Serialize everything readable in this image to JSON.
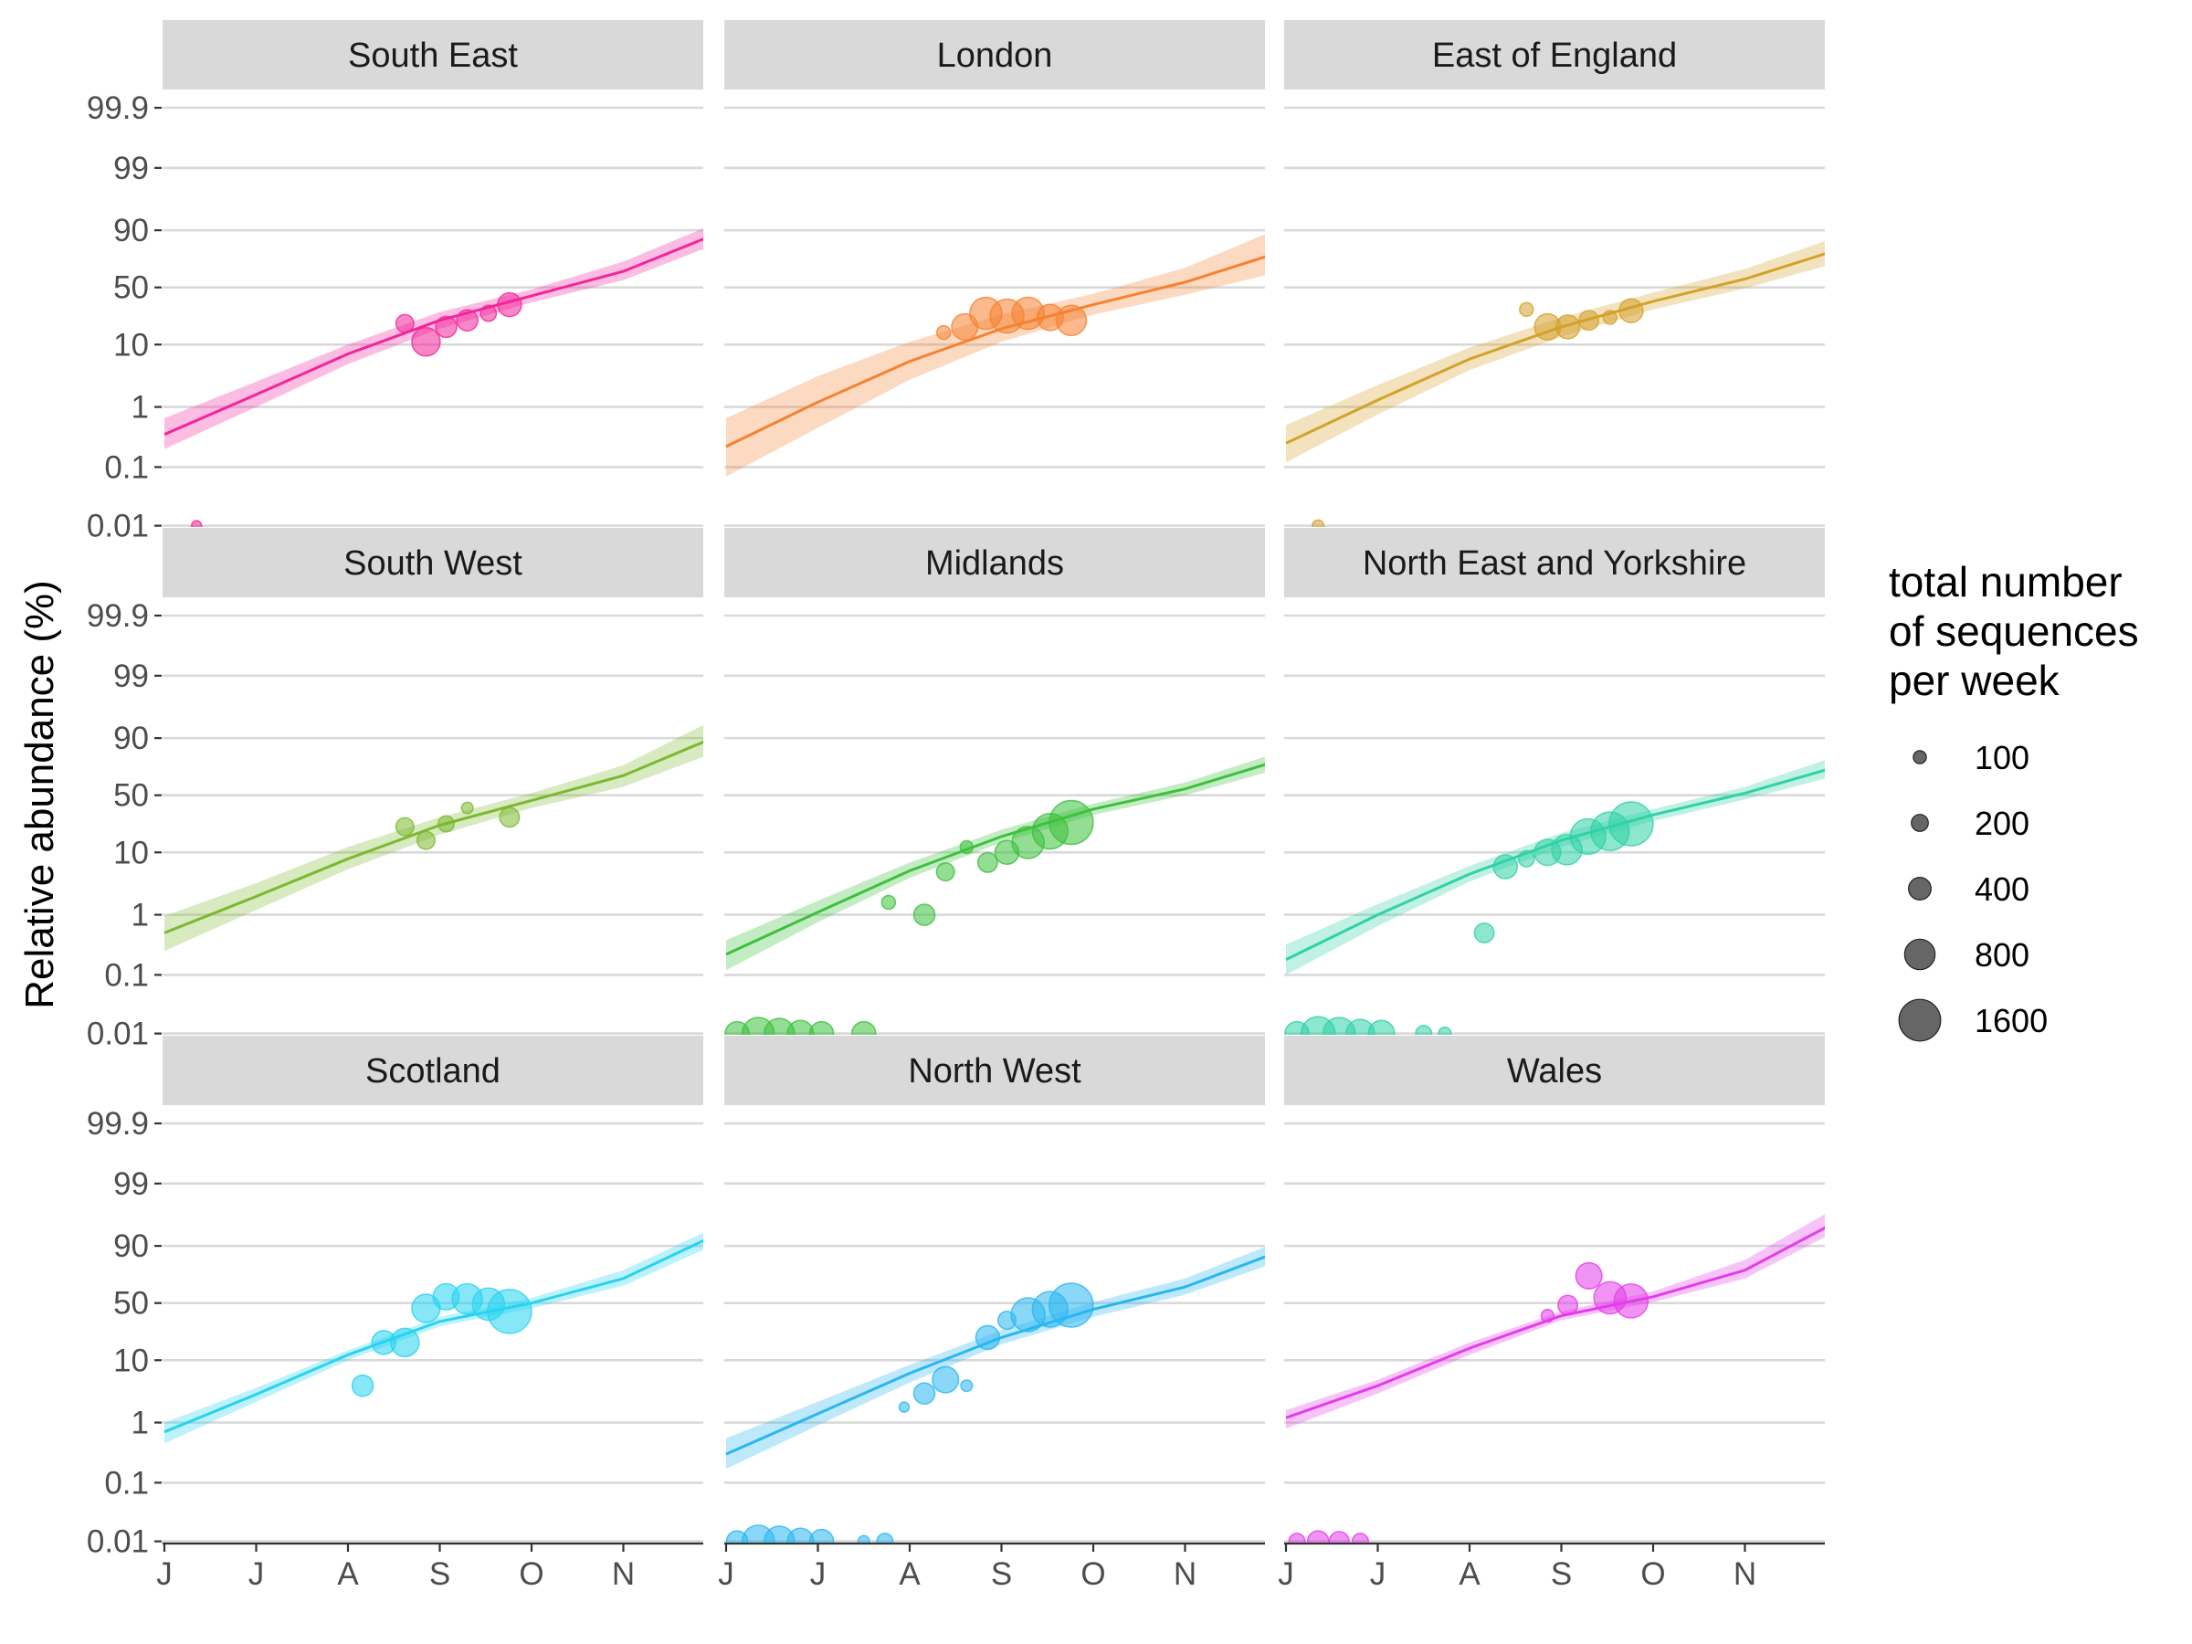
{
  "chart_data": {
    "type": "scatter",
    "ylabel": "Relative abundance (%)",
    "y_scale": "logit",
    "y_ticks": [
      0.01,
      0.1,
      1,
      10,
      50,
      90,
      99,
      99.9
    ],
    "y_tick_labels": [
      "0.01",
      "0.1",
      "1",
      "10",
      "50",
      "90",
      "99",
      "99.9"
    ],
    "x_ticks": [
      0,
      1,
      2,
      3,
      4,
      5
    ],
    "x_tick_labels": [
      "J",
      "J",
      "A",
      "S",
      "O",
      "N"
    ],
    "x_range": [
      0,
      5.9
    ],
    "legend": {
      "title_lines": [
        "total number",
        "of sequences",
        "per week"
      ],
      "placement": "right",
      "sizes": [
        100,
        200,
        400,
        800,
        1600
      ],
      "labels": [
        "100",
        "200",
        "400",
        "800",
        "1600"
      ]
    },
    "panels": [
      {
        "name": "South East",
        "color": "#F2259B",
        "fit_x": [
          0,
          1,
          2,
          3,
          4,
          5,
          5.9
        ],
        "fit_y": [
          0.35,
          1.6,
          7.2,
          22,
          42,
          65,
          87
        ],
        "band_lo": [
          0.2,
          1.0,
          5.0,
          17,
          36,
          57,
          82
        ],
        "band_hi": [
          0.65,
          2.6,
          10,
          28,
          48,
          73,
          91
        ],
        "points": [
          {
            "x": 2.62,
            "y": 20,
            "n": 200
          },
          {
            "x": 2.85,
            "y": 11,
            "n": 600
          },
          {
            "x": 3.07,
            "y": 18,
            "n": 300
          },
          {
            "x": 3.3,
            "y": 22,
            "n": 300
          },
          {
            "x": 3.53,
            "y": 27,
            "n": 150
          },
          {
            "x": 3.76,
            "y": 34,
            "n": 400
          },
          {
            "x": 0.35,
            "y": 0.01,
            "n": 40
          }
        ]
      },
      {
        "name": "London",
        "color": "#F58231",
        "fit_x": [
          0,
          1,
          2,
          3,
          4,
          5,
          5.9
        ],
        "fit_y": [
          0.22,
          1.2,
          5.5,
          17,
          34,
          55,
          77
        ],
        "band_lo": [
          0.07,
          0.45,
          2.8,
          11,
          26,
          43,
          62
        ],
        "band_hi": [
          0.65,
          3.2,
          11,
          26,
          44,
          68,
          89
        ],
        "points": [
          {
            "x": 2.37,
            "y": 15,
            "n": 100
          },
          {
            "x": 2.6,
            "y": 18,
            "n": 500
          },
          {
            "x": 2.83,
            "y": 27,
            "n": 800
          },
          {
            "x": 3.06,
            "y": 25,
            "n": 900
          },
          {
            "x": 3.29,
            "y": 27,
            "n": 800
          },
          {
            "x": 3.53,
            "y": 24,
            "n": 500
          },
          {
            "x": 3.76,
            "y": 22,
            "n": 700
          }
        ]
      },
      {
        "name": "East of England",
        "color": "#D4A129",
        "fit_x": [
          0,
          1,
          2,
          3,
          4,
          5,
          5.9
        ],
        "fit_y": [
          0.25,
          1.3,
          6.0,
          18,
          37,
          58,
          79
        ],
        "band_lo": [
          0.12,
          0.75,
          4.0,
          13,
          30,
          49,
          70
        ],
        "band_hi": [
          0.5,
          2.3,
          9,
          24,
          45,
          67,
          86
        ],
        "points": [
          {
            "x": 2.62,
            "y": 30,
            "n": 100
          },
          {
            "x": 2.85,
            "y": 18,
            "n": 500
          },
          {
            "x": 3.07,
            "y": 18,
            "n": 400
          },
          {
            "x": 3.3,
            "y": 22,
            "n": 250
          },
          {
            "x": 3.53,
            "y": 24,
            "n": 100
          },
          {
            "x": 3.76,
            "y": 29,
            "n": 400
          },
          {
            "x": 0.35,
            "y": 0.01,
            "n": 60
          }
        ]
      },
      {
        "name": "South West",
        "color": "#7CB82F",
        "fit_x": [
          0,
          1,
          2,
          3,
          4,
          5,
          5.9
        ],
        "fit_y": [
          0.5,
          2.0,
          8.0,
          24,
          45,
          68,
          89
        ],
        "band_lo": [
          0.25,
          1.2,
          5.5,
          18,
          38,
          58,
          82
        ],
        "band_hi": [
          0.95,
          3.3,
          12,
          30,
          52,
          76,
          94
        ],
        "points": [
          {
            "x": 2.62,
            "y": 23,
            "n": 200
          },
          {
            "x": 2.85,
            "y": 15,
            "n": 200
          },
          {
            "x": 3.07,
            "y": 25,
            "n": 150
          },
          {
            "x": 3.3,
            "y": 38,
            "n": 60
          },
          {
            "x": 3.76,
            "y": 30,
            "n": 250
          }
        ]
      },
      {
        "name": "Midlands",
        "color": "#3CC13C",
        "fit_x": [
          0,
          1,
          2,
          3,
          4,
          5,
          5.9
        ],
        "fit_y": [
          0.22,
          1.1,
          5.2,
          17,
          37,
          56,
          77
        ],
        "band_lo": [
          0.12,
          0.75,
          4.0,
          14,
          32,
          50,
          71
        ],
        "band_hi": [
          0.38,
          1.7,
          7.0,
          21,
          42,
          62,
          82
        ],
        "points": [
          {
            "x": 1.77,
            "y": 1.6,
            "n": 100
          },
          {
            "x": 2.16,
            "y": 1.0,
            "n": 300
          },
          {
            "x": 2.39,
            "y": 5,
            "n": 200
          },
          {
            "x": 2.62,
            "y": 12,
            "n": 80
          },
          {
            "x": 2.85,
            "y": 7,
            "n": 250
          },
          {
            "x": 3.06,
            "y": 10,
            "n": 400
          },
          {
            "x": 3.29,
            "y": 14,
            "n": 800
          },
          {
            "x": 3.53,
            "y": 20,
            "n": 1000
          },
          {
            "x": 3.76,
            "y": 26,
            "n": 1600
          },
          {
            "x": 0.12,
            "y": 0.01,
            "n": 400
          },
          {
            "x": 0.35,
            "y": 0.01,
            "n": 800
          },
          {
            "x": 0.58,
            "y": 0.01,
            "n": 700
          },
          {
            "x": 0.81,
            "y": 0.01,
            "n": 500
          },
          {
            "x": 1.04,
            "y": 0.01,
            "n": 400
          },
          {
            "x": 1.5,
            "y": 0.01,
            "n": 400
          }
        ]
      },
      {
        "name": "North East and Yorkshire",
        "color": "#2FD2A6",
        "fit_x": [
          0,
          1,
          2,
          3,
          4,
          5,
          5.9
        ],
        "fit_y": [
          0.18,
          1.0,
          4.6,
          15,
          32,
          52,
          73
        ],
        "band_lo": [
          0.1,
          0.65,
          3.5,
          12,
          27,
          46,
          66
        ],
        "band_hi": [
          0.32,
          1.5,
          6.2,
          19,
          37,
          58,
          80
        ],
        "points": [
          {
            "x": 2.16,
            "y": 0.5,
            "n": 250
          },
          {
            "x": 2.39,
            "y": 6,
            "n": 400
          },
          {
            "x": 2.62,
            "y": 8,
            "n": 150
          },
          {
            "x": 2.85,
            "y": 10,
            "n": 500
          },
          {
            "x": 3.06,
            "y": 11,
            "n": 700
          },
          {
            "x": 3.29,
            "y": 17,
            "n": 1000
          },
          {
            "x": 3.53,
            "y": 20,
            "n": 1200
          },
          {
            "x": 3.76,
            "y": 25,
            "n": 1600
          },
          {
            "x": 0.12,
            "y": 0.01,
            "n": 400
          },
          {
            "x": 0.35,
            "y": 0.01,
            "n": 900
          },
          {
            "x": 0.58,
            "y": 0.01,
            "n": 800
          },
          {
            "x": 0.81,
            "y": 0.01,
            "n": 600
          },
          {
            "x": 1.04,
            "y": 0.01,
            "n": 500
          },
          {
            "x": 1.5,
            "y": 0.01,
            "n": 150
          },
          {
            "x": 1.73,
            "y": 0.01,
            "n": 80
          }
        ]
      },
      {
        "name": "Scotland",
        "color": "#27D3F0",
        "fit_x": [
          0,
          1,
          2,
          3,
          4,
          5,
          5.9
        ],
        "fit_y": [
          0.7,
          2.9,
          12,
          33,
          50,
          72,
          92
        ],
        "band_lo": [
          0.45,
          2.2,
          10,
          29,
          45,
          66,
          89
        ],
        "band_hi": [
          1.0,
          3.7,
          14,
          37,
          55,
          78,
          94
        ],
        "points": [
          {
            "x": 2.16,
            "y": 4,
            "n": 300
          },
          {
            "x": 2.39,
            "y": 18,
            "n": 400
          },
          {
            "x": 2.62,
            "y": 18,
            "n": 600
          },
          {
            "x": 2.85,
            "y": 45,
            "n": 600
          },
          {
            "x": 3.07,
            "y": 56,
            "n": 500
          },
          {
            "x": 3.3,
            "y": 54,
            "n": 700
          },
          {
            "x": 3.53,
            "y": 49,
            "n": 800
          },
          {
            "x": 3.76,
            "y": 42,
            "n": 1600
          }
        ]
      },
      {
        "name": "North West",
        "color": "#29B6F0",
        "fit_x": [
          0,
          1,
          2,
          3,
          4,
          5,
          5.9
        ],
        "fit_y": [
          0.3,
          1.4,
          6.3,
          21,
          44,
          65,
          86
        ],
        "band_lo": [
          0.17,
          0.9,
          4.5,
          17,
          37,
          58,
          81
        ],
        "band_hi": [
          0.55,
          2.2,
          8.5,
          26,
          51,
          72,
          90
        ],
        "points": [
          {
            "x": 1.94,
            "y": 1.8,
            "n": 40
          },
          {
            "x": 2.16,
            "y": 3,
            "n": 300
          },
          {
            "x": 2.39,
            "y": 5,
            "n": 500
          },
          {
            "x": 2.62,
            "y": 4,
            "n": 60
          },
          {
            "x": 2.85,
            "y": 21,
            "n": 400
          },
          {
            "x": 3.06,
            "y": 34,
            "n": 200
          },
          {
            "x": 3.29,
            "y": 39,
            "n": 900
          },
          {
            "x": 3.53,
            "y": 44,
            "n": 1000
          },
          {
            "x": 3.76,
            "y": 48,
            "n": 1600
          },
          {
            "x": 0.12,
            "y": 0.01,
            "n": 300
          },
          {
            "x": 0.35,
            "y": 0.01,
            "n": 800
          },
          {
            "x": 0.58,
            "y": 0.01,
            "n": 700
          },
          {
            "x": 0.81,
            "y": 0.01,
            "n": 500
          },
          {
            "x": 1.04,
            "y": 0.01,
            "n": 400
          },
          {
            "x": 1.5,
            "y": 0.01,
            "n": 60
          },
          {
            "x": 1.73,
            "y": 0.01,
            "n": 150
          }
        ]
      },
      {
        "name": "Wales",
        "color": "#E43CEA",
        "fit_x": [
          0,
          1,
          2,
          3,
          4,
          5,
          5.9
        ],
        "fit_y": [
          1.2,
          4.0,
          15,
          38,
          56,
          78,
          95
        ],
        "band_lo": [
          0.8,
          3.0,
          12,
          34,
          51,
          72,
          93
        ],
        "band_hi": [
          1.6,
          5.0,
          18,
          42,
          61,
          84,
          97
        ],
        "points": [
          {
            "x": 2.85,
            "y": 38,
            "n": 80
          },
          {
            "x": 3.07,
            "y": 48,
            "n": 250
          },
          {
            "x": 3.3,
            "y": 74,
            "n": 500
          },
          {
            "x": 3.53,
            "y": 55,
            "n": 800
          },
          {
            "x": 3.76,
            "y": 52,
            "n": 900
          },
          {
            "x": 0.12,
            "y": 0.01,
            "n": 150
          },
          {
            "x": 0.35,
            "y": 0.01,
            "n": 300
          },
          {
            "x": 0.58,
            "y": 0.01,
            "n": 250
          },
          {
            "x": 0.81,
            "y": 0.01,
            "n": 150
          }
        ]
      }
    ]
  }
}
